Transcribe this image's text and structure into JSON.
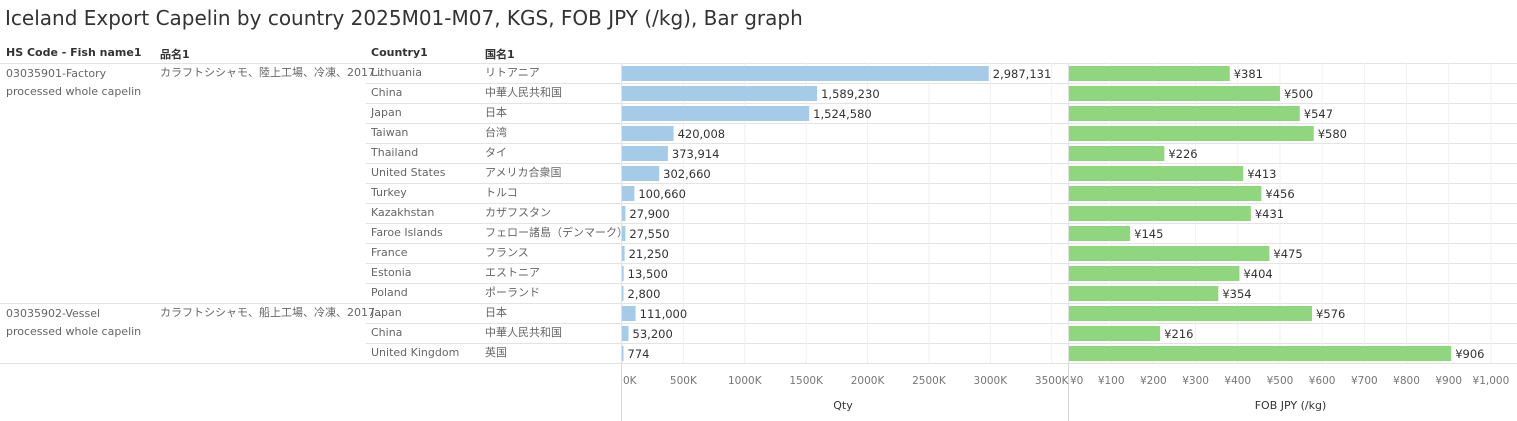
{
  "title": "Iceland Export Capelin by country 2025M01-M07, KGS, FOB JPY (/kg), Bar graph",
  "headers": {
    "hs_code": "HS Code - Fish name1",
    "hinmei": "品名1",
    "country": "Country1",
    "kokumei": "国名1"
  },
  "groups": [
    {
      "hs_code": "03035901-Factory processed whole capelin",
      "hinmei": "カラフトシシャモ、陸上工場、冷凍、2017..",
      "rows": 12
    },
    {
      "hs_code": "03035902-Vessel processed whole capelin",
      "hinmei": "カラフトシシャモ、船上工場、冷凍、2017..",
      "rows": 3
    }
  ],
  "colors": {
    "qty_bar": "#a6cbe8",
    "fob_bar": "#8fd67e"
  },
  "chart_data": {
    "type": "bar",
    "categories": [
      "Lithuania",
      "China",
      "Japan",
      "Taiwan",
      "Thailand",
      "United States",
      "Turkey",
      "Kazakhstan",
      "Faroe Islands",
      "France",
      "Estonia",
      "Poland",
      "Japan",
      "China",
      "United Kingdom"
    ],
    "categories_ja": [
      "リトアニア",
      "中華人民共和国",
      "日本",
      "台湾",
      "タイ",
      "アメリカ合衆国",
      "トルコ",
      "カザフスタン",
      "フェロー諸島（デンマーク）",
      "フランス",
      "エストニア",
      "ポーランド",
      "日本",
      "中華人民共和国",
      "英国"
    ],
    "series": [
      {
        "name": "Qty",
        "values": [
          2987131,
          1589230,
          1524580,
          420008,
          373914,
          302660,
          100660,
          27900,
          27550,
          21250,
          13500,
          2800,
          111000,
          53200,
          774
        ],
        "labels": [
          "2,987,131",
          "1,589,230",
          "1,524,580",
          "420,008",
          "373,914",
          "302,660",
          "100,660",
          "27,900",
          "27,550",
          "21,250",
          "13,500",
          "2,800",
          "111,000",
          "53,200",
          "774"
        ],
        "xlabel": "Qty",
        "xlim": [
          0,
          3600000
        ],
        "ticks": [
          0,
          500000,
          1000000,
          1500000,
          2000000,
          2500000,
          3000000,
          3500000
        ],
        "tick_labels": [
          "0K",
          "500K",
          "1000K",
          "1500K",
          "2000K",
          "2500K",
          "3000K",
          "3500K"
        ]
      },
      {
        "name": "FOB JPY (/kg)",
        "values": [
          381,
          500,
          547,
          580,
          226,
          413,
          456,
          431,
          145,
          475,
          404,
          354,
          576,
          216,
          906
        ],
        "labels": [
          "¥381",
          "¥500",
          "¥547",
          "¥580",
          "¥226",
          "¥413",
          "¥456",
          "¥431",
          "¥145",
          "¥475",
          "¥404",
          "¥354",
          "¥576",
          "¥216",
          "¥906"
        ],
        "xlabel": "FOB JPY (/kg)",
        "xlim": [
          0,
          1050
        ],
        "ticks": [
          0,
          100,
          200,
          300,
          400,
          500,
          600,
          700,
          800,
          900,
          1000
        ],
        "tick_labels": [
          "¥0",
          "¥100",
          "¥200",
          "¥300",
          "¥400",
          "¥500",
          "¥600",
          "¥700",
          "¥800",
          "¥900",
          "¥1,000"
        ]
      }
    ],
    "grid": true,
    "legend": "none"
  }
}
